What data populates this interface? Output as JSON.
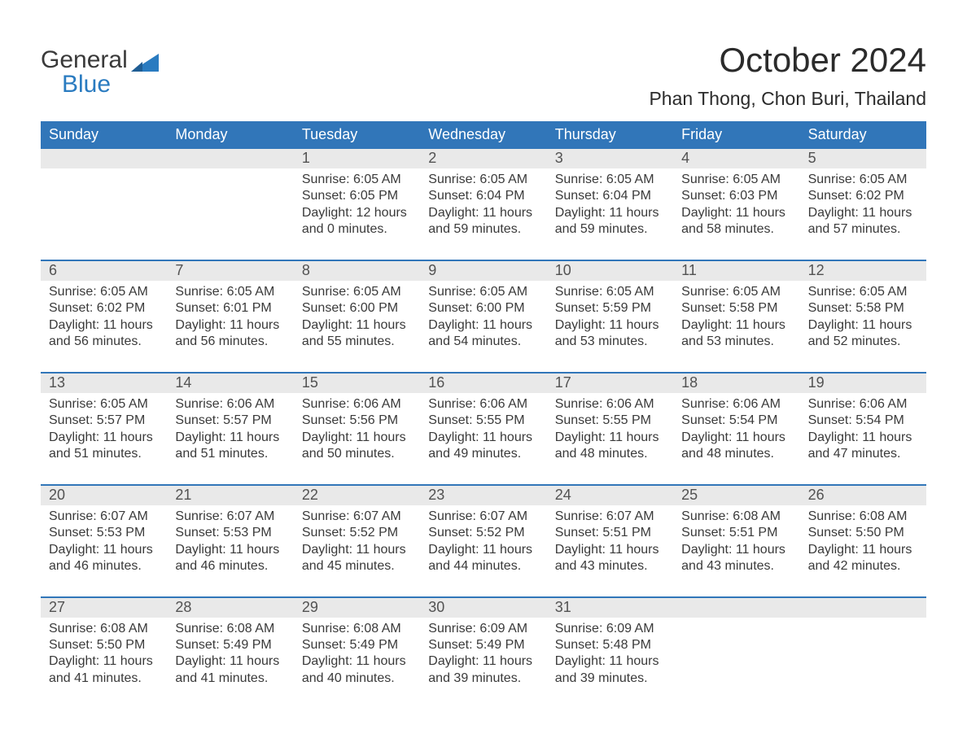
{
  "brand": {
    "line1": "General",
    "line2": "Blue"
  },
  "title": "October 2024",
  "location": "Phan Thong, Chon Buri, Thailand",
  "colors": {
    "header_bg": "#3176b9",
    "header_text": "#ffffff",
    "day_strip_bg": "#e9e9e9",
    "rule": "#3176b9",
    "body_text": "#3a3a3a",
    "brand_blue": "#2a7bc0",
    "page_bg": "#ffffff"
  },
  "typography": {
    "title_fontsize": 42,
    "location_fontsize": 23,
    "weekday_fontsize": 18,
    "daynum_fontsize": 18,
    "body_fontsize": 16
  },
  "layout": {
    "columns": 7,
    "rows": 5,
    "leading_blanks": 2,
    "trailing_blanks": 2
  },
  "weekdays": [
    "Sunday",
    "Monday",
    "Tuesday",
    "Wednesday",
    "Thursday",
    "Friday",
    "Saturday"
  ],
  "days": [
    {
      "n": 1,
      "sunrise": "6:05 AM",
      "sunset": "6:05 PM",
      "dl_h": 12,
      "dl_m": 0
    },
    {
      "n": 2,
      "sunrise": "6:05 AM",
      "sunset": "6:04 PM",
      "dl_h": 11,
      "dl_m": 59
    },
    {
      "n": 3,
      "sunrise": "6:05 AM",
      "sunset": "6:04 PM",
      "dl_h": 11,
      "dl_m": 59
    },
    {
      "n": 4,
      "sunrise": "6:05 AM",
      "sunset": "6:03 PM",
      "dl_h": 11,
      "dl_m": 58
    },
    {
      "n": 5,
      "sunrise": "6:05 AM",
      "sunset": "6:02 PM",
      "dl_h": 11,
      "dl_m": 57
    },
    {
      "n": 6,
      "sunrise": "6:05 AM",
      "sunset": "6:02 PM",
      "dl_h": 11,
      "dl_m": 56
    },
    {
      "n": 7,
      "sunrise": "6:05 AM",
      "sunset": "6:01 PM",
      "dl_h": 11,
      "dl_m": 56
    },
    {
      "n": 8,
      "sunrise": "6:05 AM",
      "sunset": "6:00 PM",
      "dl_h": 11,
      "dl_m": 55
    },
    {
      "n": 9,
      "sunrise": "6:05 AM",
      "sunset": "6:00 PM",
      "dl_h": 11,
      "dl_m": 54
    },
    {
      "n": 10,
      "sunrise": "6:05 AM",
      "sunset": "5:59 PM",
      "dl_h": 11,
      "dl_m": 53
    },
    {
      "n": 11,
      "sunrise": "6:05 AM",
      "sunset": "5:58 PM",
      "dl_h": 11,
      "dl_m": 53
    },
    {
      "n": 12,
      "sunrise": "6:05 AM",
      "sunset": "5:58 PM",
      "dl_h": 11,
      "dl_m": 52
    },
    {
      "n": 13,
      "sunrise": "6:05 AM",
      "sunset": "5:57 PM",
      "dl_h": 11,
      "dl_m": 51
    },
    {
      "n": 14,
      "sunrise": "6:06 AM",
      "sunset": "5:57 PM",
      "dl_h": 11,
      "dl_m": 51
    },
    {
      "n": 15,
      "sunrise": "6:06 AM",
      "sunset": "5:56 PM",
      "dl_h": 11,
      "dl_m": 50
    },
    {
      "n": 16,
      "sunrise": "6:06 AM",
      "sunset": "5:55 PM",
      "dl_h": 11,
      "dl_m": 49
    },
    {
      "n": 17,
      "sunrise": "6:06 AM",
      "sunset": "5:55 PM",
      "dl_h": 11,
      "dl_m": 48
    },
    {
      "n": 18,
      "sunrise": "6:06 AM",
      "sunset": "5:54 PM",
      "dl_h": 11,
      "dl_m": 48
    },
    {
      "n": 19,
      "sunrise": "6:06 AM",
      "sunset": "5:54 PM",
      "dl_h": 11,
      "dl_m": 47
    },
    {
      "n": 20,
      "sunrise": "6:07 AM",
      "sunset": "5:53 PM",
      "dl_h": 11,
      "dl_m": 46
    },
    {
      "n": 21,
      "sunrise": "6:07 AM",
      "sunset": "5:53 PM",
      "dl_h": 11,
      "dl_m": 46
    },
    {
      "n": 22,
      "sunrise": "6:07 AM",
      "sunset": "5:52 PM",
      "dl_h": 11,
      "dl_m": 45
    },
    {
      "n": 23,
      "sunrise": "6:07 AM",
      "sunset": "5:52 PM",
      "dl_h": 11,
      "dl_m": 44
    },
    {
      "n": 24,
      "sunrise": "6:07 AM",
      "sunset": "5:51 PM",
      "dl_h": 11,
      "dl_m": 43
    },
    {
      "n": 25,
      "sunrise": "6:08 AM",
      "sunset": "5:51 PM",
      "dl_h": 11,
      "dl_m": 43
    },
    {
      "n": 26,
      "sunrise": "6:08 AM",
      "sunset": "5:50 PM",
      "dl_h": 11,
      "dl_m": 42
    },
    {
      "n": 27,
      "sunrise": "6:08 AM",
      "sunset": "5:50 PM",
      "dl_h": 11,
      "dl_m": 41
    },
    {
      "n": 28,
      "sunrise": "6:08 AM",
      "sunset": "5:49 PM",
      "dl_h": 11,
      "dl_m": 41
    },
    {
      "n": 29,
      "sunrise": "6:08 AM",
      "sunset": "5:49 PM",
      "dl_h": 11,
      "dl_m": 40
    },
    {
      "n": 30,
      "sunrise": "6:09 AM",
      "sunset": "5:49 PM",
      "dl_h": 11,
      "dl_m": 39
    },
    {
      "n": 31,
      "sunrise": "6:09 AM",
      "sunset": "5:48 PM",
      "dl_h": 11,
      "dl_m": 39
    }
  ],
  "labels": {
    "sunrise": "Sunrise",
    "sunset": "Sunset",
    "daylight": "Daylight",
    "hours_word": "hours",
    "and_word": "and",
    "minutes_word": "minutes"
  }
}
